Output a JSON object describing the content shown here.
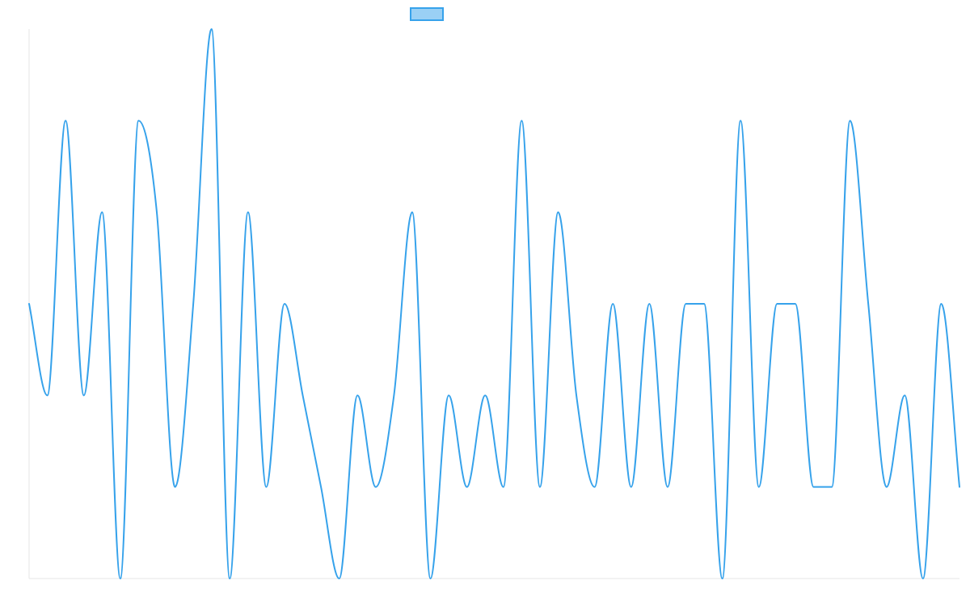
{
  "chart_data": {
    "type": "line",
    "title": "",
    "xlabel": "",
    "ylabel": "",
    "ylim": [
      0,
      6
    ],
    "grid": false,
    "legend": "top-center",
    "series": [
      {
        "values": [
          3,
          2,
          5,
          2,
          4,
          0,
          5,
          4,
          1,
          3,
          6,
          0,
          4,
          1,
          3,
          2,
          1,
          0,
          2,
          1,
          2,
          4,
          0,
          2,
          1,
          2,
          1,
          5,
          1,
          4,
          2,
          1,
          3,
          1,
          3,
          1,
          3,
          3,
          0,
          5,
          1,
          3,
          3,
          1,
          1,
          5,
          3,
          1,
          2,
          0,
          3,
          1
        ],
        "color": "#36a2eb",
        "fill": "#9ad0f5"
      }
    ]
  }
}
